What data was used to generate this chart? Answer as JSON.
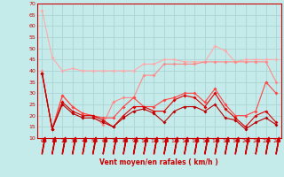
{
  "xlabel": "Vent moyen/en rafales ( km/h )",
  "xlim": [
    -0.5,
    23.5
  ],
  "ylim": [
    10,
    70
  ],
  "yticks": [
    10,
    15,
    20,
    25,
    30,
    35,
    40,
    45,
    50,
    55,
    60,
    65,
    70
  ],
  "xticks": [
    0,
    1,
    2,
    3,
    4,
    5,
    6,
    7,
    8,
    9,
    10,
    11,
    12,
    13,
    14,
    15,
    16,
    17,
    18,
    19,
    20,
    21,
    22,
    23
  ],
  "background_color": "#c5eaea",
  "grid_color": "#aad4d4",
  "line1_color": "#ffaaaa",
  "line2_color": "#ff8888",
  "line3_color": "#ff4444",
  "line4_color": "#dd0000",
  "line5_color": "#bb0000",
  "line1_y": [
    67,
    46,
    40,
    41,
    40,
    40,
    40,
    40,
    40,
    40,
    43,
    43,
    45,
    45,
    44,
    44,
    44,
    51,
    49,
    44,
    45,
    45,
    45,
    45
  ],
  "line2_y": [
    40,
    14,
    29,
    24,
    21,
    20,
    16,
    26,
    28,
    28,
    38,
    38,
    43,
    43,
    43,
    43,
    44,
    44,
    44,
    44,
    44,
    44,
    44,
    35
  ],
  "line3_y": [
    39,
    14,
    29,
    24,
    21,
    20,
    19,
    19,
    24,
    28,
    24,
    24,
    27,
    28,
    30,
    30,
    26,
    32,
    25,
    20,
    20,
    22,
    35,
    30
  ],
  "line4_y": [
    39,
    14,
    26,
    22,
    20,
    20,
    18,
    15,
    20,
    24,
    24,
    22,
    22,
    27,
    29,
    28,
    24,
    30,
    23,
    19,
    15,
    20,
    22,
    17
  ],
  "line5_y": [
    39,
    14,
    25,
    21,
    19,
    19,
    17,
    15,
    19,
    22,
    23,
    21,
    17,
    22,
    24,
    24,
    22,
    25,
    19,
    18,
    14,
    17,
    19,
    16
  ]
}
